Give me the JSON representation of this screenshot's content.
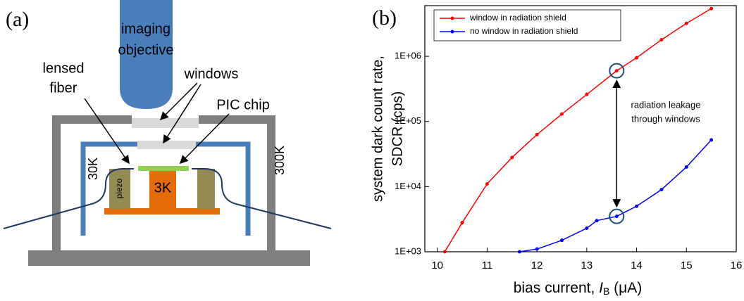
{
  "diagram": {
    "panel_label": "(a)",
    "objective_label": [
      "imaging",
      "objective"
    ],
    "fiber_label": [
      "lensed",
      "fiber"
    ],
    "windows_label": "windows",
    "chip_label": "PIC chip",
    "shield_label": "30K",
    "outer_label": "300K",
    "piezo_label": "piezo",
    "stage_label": "3K"
  },
  "chart_data": {
    "type": "line",
    "panel_label": "(b)",
    "x_label": [
      "bias current, ",
      "I",
      "B",
      " (μA)"
    ],
    "y_label": [
      "system dark count rate,",
      "SDCR (cps)"
    ],
    "annotation": [
      "radiation leakage",
      "through windows"
    ],
    "log_y": true,
    "legend": "upper left",
    "xlim": [
      9.75,
      16
    ],
    "xticks": [
      10,
      11,
      12,
      13,
      14,
      15,
      16
    ],
    "ylim": [
      1000,
      6000000
    ],
    "yticks": [
      {
        "value": 1000,
        "label": "1E+03"
      },
      {
        "value": 10000,
        "label": "1E+04"
      },
      {
        "value": 100000,
        "label": "1E+05"
      },
      {
        "value": 1000000,
        "label": "1E+06"
      }
    ],
    "series": [
      {
        "name": "window in radiation shield",
        "color": "#ff0000",
        "x": [
          10.15,
          10.5,
          11.0,
          11.5,
          12.0,
          12.5,
          13.0,
          13.6,
          14.0,
          14.5,
          15.0,
          15.5
        ],
        "values": [
          1000,
          2800,
          11000,
          28000,
          63000,
          130000,
          260000,
          600000,
          950000,
          1800000,
          3200000,
          5400000
        ]
      },
      {
        "name": "no window in radiation shield",
        "color": "#0000ff",
        "x": [
          11.65,
          12.0,
          12.5,
          13.0,
          13.2,
          13.6,
          14.0,
          14.5,
          15.0,
          15.5
        ],
        "values": [
          1000,
          1100,
          1500,
          2300,
          3000,
          3500,
          5000,
          9000,
          20000,
          52000
        ]
      }
    ]
  }
}
